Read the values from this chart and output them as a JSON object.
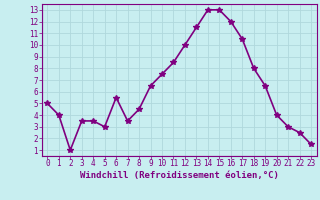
{
  "x": [
    0,
    1,
    2,
    3,
    4,
    5,
    6,
    7,
    8,
    9,
    10,
    11,
    12,
    13,
    14,
    15,
    16,
    17,
    18,
    19,
    20,
    21,
    22,
    23
  ],
  "y": [
    5,
    4,
    1,
    3.5,
    3.5,
    3,
    5.5,
    3.5,
    4.5,
    6.5,
    7.5,
    8.5,
    10,
    11.5,
    13,
    13,
    12,
    10.5,
    8,
    6.5,
    4,
    3,
    2.5,
    1.5
  ],
  "line_color": "#800080",
  "marker": "*",
  "marker_size": 4,
  "bg_color": "#c8eef0",
  "grid_color": "#b0d8dc",
  "xlabel": "Windchill (Refroidissement éolien,°C)",
  "xlabel_color": "#800080",
  "tick_color": "#800080",
  "ylim": [
    0.5,
    13.5
  ],
  "xlim": [
    -0.5,
    23.5
  ],
  "yticks": [
    1,
    2,
    3,
    4,
    5,
    6,
    7,
    8,
    9,
    10,
    11,
    12,
    13
  ],
  "xticks": [
    0,
    1,
    2,
    3,
    4,
    5,
    6,
    7,
    8,
    9,
    10,
    11,
    12,
    13,
    14,
    15,
    16,
    17,
    18,
    19,
    20,
    21,
    22,
    23
  ],
  "spine_color": "#800080",
  "line_width": 1.2,
  "tick_fontsize": 5.5,
  "xlabel_fontsize": 6.5
}
